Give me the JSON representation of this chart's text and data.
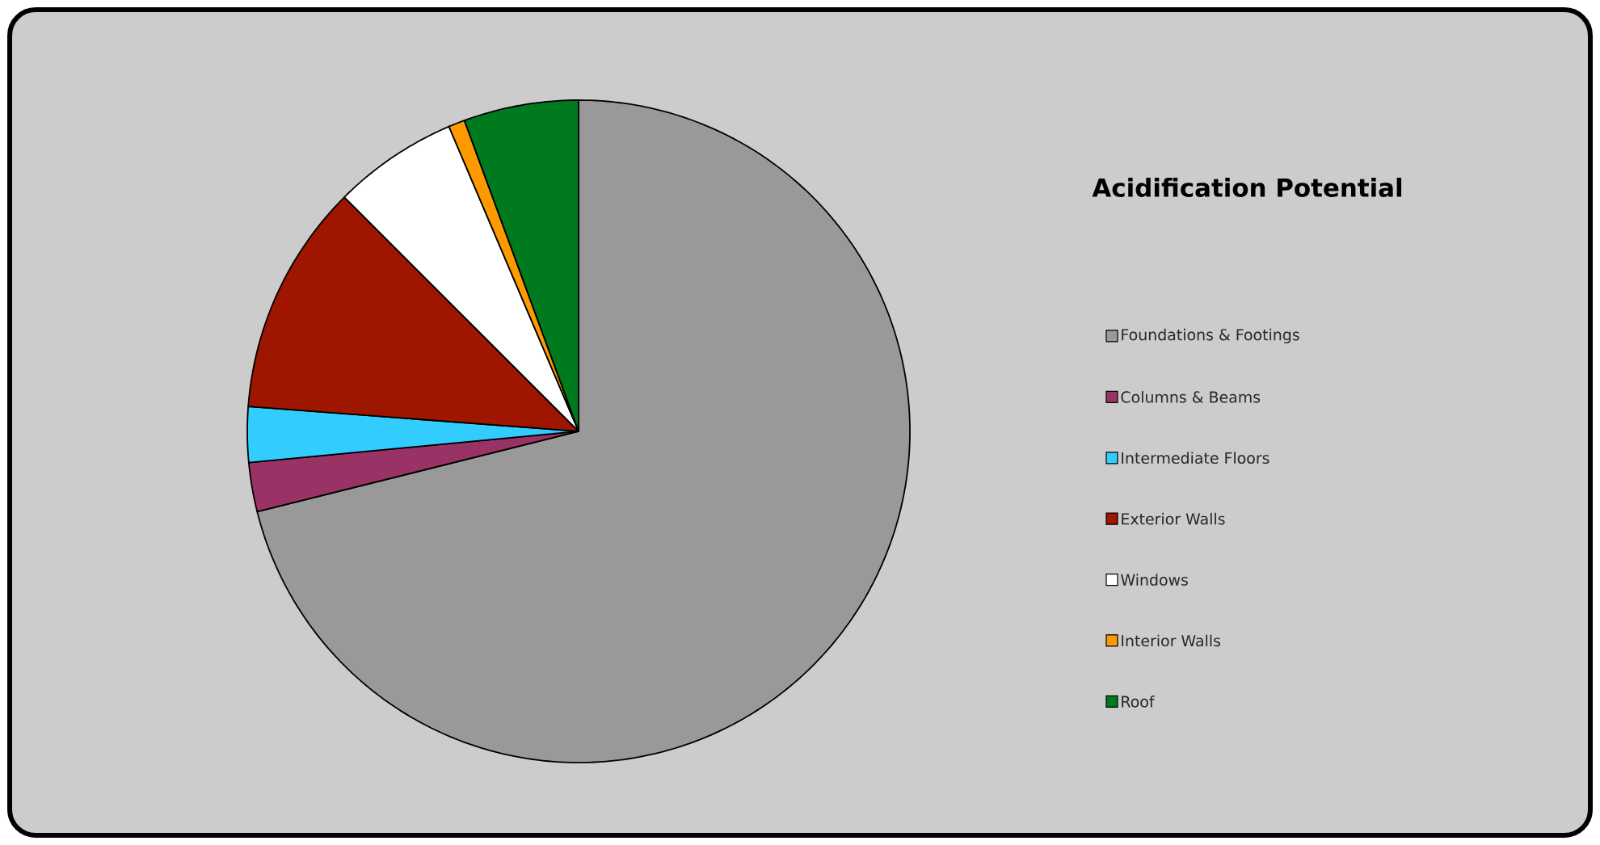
{
  "chart_data": {
    "type": "pie",
    "title": "Acidification Potential",
    "categories": [
      "Foundations & Footings",
      "Columns & Beams",
      "Intermediate Floors",
      "Exterior Walls",
      "Windows",
      "Interior Walls",
      "Roof"
    ],
    "values": [
      71.1,
      2.4,
      2.7,
      11.3,
      6.1,
      0.8,
      5.6
    ],
    "colors": [
      "#999999",
      "#993366",
      "#33ccff",
      "#9e1600",
      "#ffffff",
      "#ff9900",
      "#007a1f"
    ],
    "legend": "right"
  }
}
